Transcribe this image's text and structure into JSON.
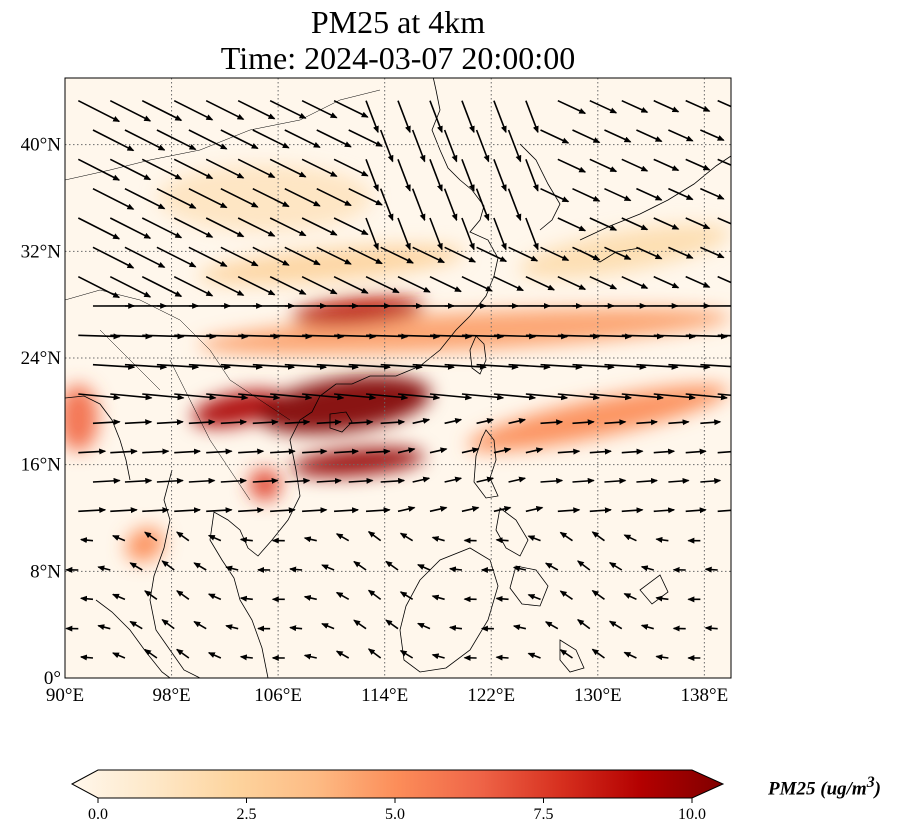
{
  "title": {
    "line1": "PM25 at 4km",
    "line2": "Time: 2024-03-07 20:00:00"
  },
  "map": {
    "extent": {
      "lon_min": 90,
      "lon_max": 140,
      "lat_min": 0,
      "lat_max": 45
    },
    "gridlines": "dotted",
    "lon_ticks": [
      {
        "value": 90,
        "label": "90°E"
      },
      {
        "value": 98,
        "label": "98°E"
      },
      {
        "value": 106,
        "label": "106°E"
      },
      {
        "value": 114,
        "label": "114°E"
      },
      {
        "value": 122,
        "label": "122°E"
      },
      {
        "value": 130,
        "label": "130°E"
      },
      {
        "value": 138,
        "label": "138°E"
      }
    ],
    "lat_ticks": [
      {
        "value": 0,
        "label": "0°"
      },
      {
        "value": 8,
        "label": "8°N"
      },
      {
        "value": 16,
        "label": "16°N"
      },
      {
        "value": 24,
        "label": "24°N"
      },
      {
        "value": 32,
        "label": "32°N"
      },
      {
        "value": 40,
        "label": "40°N"
      }
    ],
    "pollution_plumes": [
      {
        "lon": 111,
        "lat": 20.5,
        "rx_deg": 6.5,
        "ry_deg": 2.0,
        "rot": -8,
        "value": 10.0
      },
      {
        "lon": 103,
        "lat": 20.2,
        "rx_deg": 3.5,
        "ry_deg": 1.2,
        "rot": -12,
        "value": 9.0
      },
      {
        "lon": 112,
        "lat": 16.2,
        "rx_deg": 5.0,
        "ry_deg": 1.0,
        "rot": -5,
        "value": 9.5
      },
      {
        "lon": 105,
        "lat": 14.5,
        "rx_deg": 1.2,
        "ry_deg": 1.2,
        "rot": 0,
        "value": 7.0
      },
      {
        "lon": 112,
        "lat": 27.5,
        "rx_deg": 5.0,
        "ry_deg": 1.0,
        "rot": -5,
        "value": 8.5
      },
      {
        "lon": 120,
        "lat": 26.0,
        "rx_deg": 20.0,
        "ry_deg": 1.4,
        "rot": -3,
        "value": 4.5
      },
      {
        "lon": 130,
        "lat": 19.5,
        "rx_deg": 10.0,
        "ry_deg": 1.4,
        "rot": -12,
        "value": 5.0
      },
      {
        "lon": 91,
        "lat": 19.5,
        "rx_deg": 1.5,
        "ry_deg": 2.5,
        "rot": 0,
        "value": 6.0
      },
      {
        "lon": 96,
        "lat": 10.0,
        "rx_deg": 1.5,
        "ry_deg": 1.2,
        "rot": -30,
        "value": 5.0
      },
      {
        "lon": 110,
        "lat": 31.0,
        "rx_deg": 10.0,
        "ry_deg": 1.2,
        "rot": -5,
        "value": 2.5
      },
      {
        "lon": 132,
        "lat": 32.0,
        "rx_deg": 8.0,
        "ry_deg": 1.5,
        "rot": -10,
        "value": 2.0
      },
      {
        "lon": 105,
        "lat": 36.0,
        "rx_deg": 8.0,
        "ry_deg": 2.5,
        "rot": 0,
        "value": 1.5
      }
    ]
  },
  "colorbar": {
    "min": 0.0,
    "max": 10.0,
    "ticks": [
      "0.0",
      "2.5",
      "5.0",
      "7.5",
      "10.0"
    ],
    "label": "PM25 (ug/m",
    "label_superscript": "3",
    "label_close": ")",
    "extend": "both",
    "colormap": "OrRd",
    "colors": [
      "#fff7ec",
      "#fee8c8",
      "#fdd49e",
      "#fdbb84",
      "#fc8d59",
      "#ef6548",
      "#d7301f",
      "#b30000",
      "#7f0000"
    ]
  },
  "style": {
    "coastline": "#000000",
    "grid": "#6b6b6b",
    "arrow": "#000000"
  }
}
